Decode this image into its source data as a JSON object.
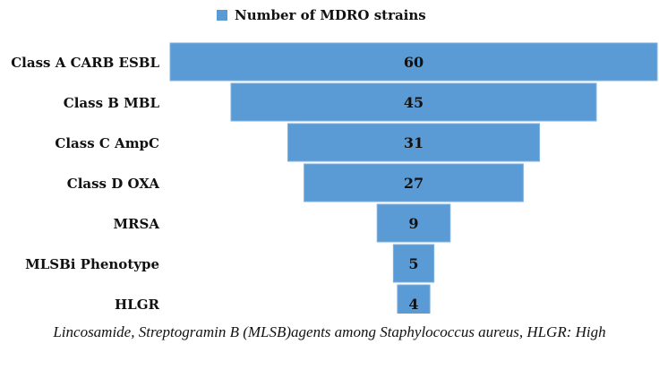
{
  "chart_data": {
    "type": "bar",
    "orientation": "horizontal-centered",
    "categories": [
      "Class A CARB ESBL",
      "Class B MBL",
      "Class C AmpC",
      "Class D OXA",
      "MRSA",
      "MLSBi Phenotype",
      "HLGR"
    ],
    "series": [
      {
        "name": "Number of MDRO strains",
        "values": [
          60,
          45,
          31,
          27,
          9,
          5,
          4
        ]
      }
    ],
    "legend_position": "top",
    "grid": false,
    "data_labels": true,
    "colors": {
      "bar": "#5b9bd5",
      "bar_edge": "#7fb1e0"
    }
  },
  "caption": "Lincosamide, Streptogramin B (MLSB)agents among Staphylococcus aureus, HLGR: High"
}
